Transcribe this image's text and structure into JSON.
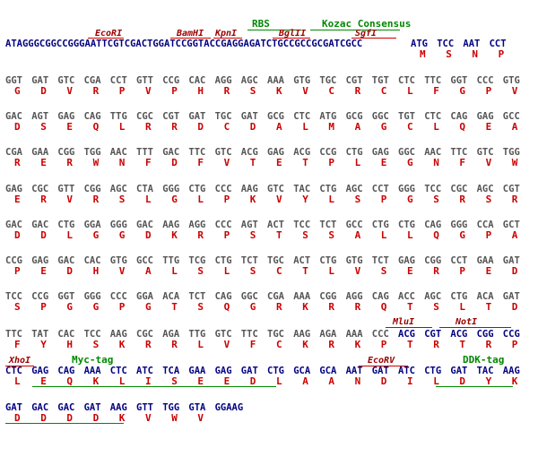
{
  "header": {
    "sequence": "ATAGGGCGGCCGGGAATTCGTCGACTGGATCCGGTACCGAGGAGATCTGCCGCCGCGATCGCC",
    "sites": [
      "EcoRI",
      "BamHI",
      "KpnI",
      "BglII",
      "SgfI"
    ],
    "features": [
      "RBS",
      "Kozac Consensus"
    ]
  },
  "rows": [
    [
      [
        "ATG",
        "M"
      ],
      [
        "TCC",
        "S"
      ],
      [
        "AAT",
        "N"
      ],
      [
        "CCT",
        "P"
      ]
    ],
    [
      [
        "GGT",
        "G"
      ],
      [
        "GAT",
        "D"
      ],
      [
        "GTC",
        "V"
      ],
      [
        "CGA",
        "R"
      ],
      [
        "CCT",
        "P"
      ],
      [
        "GTT",
        "V"
      ],
      [
        "CCG",
        "P"
      ],
      [
        "CAC",
        "H"
      ],
      [
        "AGG",
        "R"
      ],
      [
        "AGC",
        "S"
      ],
      [
        "AAA",
        "K"
      ],
      [
        "GTG",
        "V"
      ],
      [
        "TGC",
        "C"
      ],
      [
        "CGT",
        "R"
      ],
      [
        "TGT",
        "C"
      ],
      [
        "CTC",
        "L"
      ],
      [
        "TTC",
        "F"
      ],
      [
        "GGT",
        "G"
      ],
      [
        "CCC",
        "P"
      ],
      [
        "GTG",
        "V"
      ]
    ],
    [
      [
        "GAC",
        "D"
      ],
      [
        "AGT",
        "S"
      ],
      [
        "GAG",
        "E"
      ],
      [
        "CAG",
        "Q"
      ],
      [
        "TTG",
        "L"
      ],
      [
        "CGC",
        "R"
      ],
      [
        "CGT",
        "R"
      ],
      [
        "GAT",
        "D"
      ],
      [
        "TGC",
        "C"
      ],
      [
        "GAT",
        "D"
      ],
      [
        "GCG",
        "A"
      ],
      [
        "CTC",
        "L"
      ],
      [
        "ATG",
        "M"
      ],
      [
        "GCG",
        "A"
      ],
      [
        "GGC",
        "G"
      ],
      [
        "TGT",
        "C"
      ],
      [
        "CTC",
        "L"
      ],
      [
        "CAG",
        "Q"
      ],
      [
        "GAG",
        "E"
      ],
      [
        "GCC",
        "A"
      ]
    ],
    [
      [
        "CGA",
        "R"
      ],
      [
        "GAA",
        "E"
      ],
      [
        "CGG",
        "R"
      ],
      [
        "TGG",
        "W"
      ],
      [
        "AAC",
        "N"
      ],
      [
        "TTT",
        "F"
      ],
      [
        "GAC",
        "D"
      ],
      [
        "TTC",
        "F"
      ],
      [
        "GTC",
        "V"
      ],
      [
        "ACG",
        "T"
      ],
      [
        "GAG",
        "E"
      ],
      [
        "ACG",
        "T"
      ],
      [
        "CCG",
        "P"
      ],
      [
        "CTG",
        "L"
      ],
      [
        "GAG",
        "E"
      ],
      [
        "GGC",
        "G"
      ],
      [
        "AAC",
        "N"
      ],
      [
        "TTC",
        "F"
      ],
      [
        "GTC",
        "V"
      ],
      [
        "TGG",
        "W"
      ]
    ],
    [
      [
        "GAG",
        "E"
      ],
      [
        "CGC",
        "R"
      ],
      [
        "GTT",
        "V"
      ],
      [
        "CGG",
        "R"
      ],
      [
        "AGC",
        "S"
      ],
      [
        "CTA",
        "L"
      ],
      [
        "GGG",
        "G"
      ],
      [
        "CTG",
        "L"
      ],
      [
        "CCC",
        "P"
      ],
      [
        "AAG",
        "K"
      ],
      [
        "GTC",
        "V"
      ],
      [
        "TAC",
        "Y"
      ],
      [
        "CTG",
        "L"
      ],
      [
        "AGC",
        "S"
      ],
      [
        "CCT",
        "P"
      ],
      [
        "GGG",
        "G"
      ],
      [
        "TCC",
        "S"
      ],
      [
        "CGC",
        "R"
      ],
      [
        "AGC",
        "S"
      ],
      [
        "CGT",
        "R"
      ]
    ],
    [
      [
        "GAC",
        "D"
      ],
      [
        "GAC",
        "D"
      ],
      [
        "CTG",
        "L"
      ],
      [
        "GGA",
        "G"
      ],
      [
        "GGG",
        "G"
      ],
      [
        "GAC",
        "D"
      ],
      [
        "AAG",
        "K"
      ],
      [
        "AGG",
        "R"
      ],
      [
        "CCC",
        "P"
      ],
      [
        "AGT",
        "S"
      ],
      [
        "ACT",
        "T"
      ],
      [
        "TCC",
        "S"
      ],
      [
        "TCT",
        "S"
      ],
      [
        "GCC",
        "A"
      ],
      [
        "CTG",
        "L"
      ],
      [
        "CTG",
        "L"
      ],
      [
        "CAG",
        "Q"
      ],
      [
        "GGG",
        "G"
      ],
      [
        "CCA",
        "P"
      ],
      [
        "GCT",
        "A"
      ]
    ],
    [
      [
        "CCG",
        "P"
      ],
      [
        "GAG",
        "E"
      ],
      [
        "GAC",
        "D"
      ],
      [
        "CAC",
        "H"
      ],
      [
        "GTG",
        "V"
      ],
      [
        "GCC",
        "A"
      ],
      [
        "TTG",
        "L"
      ],
      [
        "TCG",
        "S"
      ],
      [
        "CTG",
        "L"
      ],
      [
        "TCT",
        "S"
      ],
      [
        "TGC",
        "C"
      ],
      [
        "ACT",
        "T"
      ],
      [
        "CTG",
        "L"
      ],
      [
        "GTG",
        "V"
      ],
      [
        "TCT",
        "S"
      ],
      [
        "GAG",
        "E"
      ],
      [
        "CGG",
        "R"
      ],
      [
        "CCT",
        "P"
      ],
      [
        "GAA",
        "E"
      ],
      [
        "GAT",
        "D"
      ]
    ],
    [
      [
        "TCC",
        "S"
      ],
      [
        "CCG",
        "P"
      ],
      [
        "GGT",
        "G"
      ],
      [
        "GGG",
        "G"
      ],
      [
        "CCC",
        "P"
      ],
      [
        "GGA",
        "G"
      ],
      [
        "ACA",
        "T"
      ],
      [
        "TCT",
        "S"
      ],
      [
        "CAG",
        "Q"
      ],
      [
        "GGC",
        "G"
      ],
      [
        "CGA",
        "R"
      ],
      [
        "AAA",
        "K"
      ],
      [
        "CGG",
        "R"
      ],
      [
        "AGG",
        "R"
      ],
      [
        "CAG",
        "Q"
      ],
      [
        "ACC",
        "T"
      ],
      [
        "AGC",
        "S"
      ],
      [
        "CTG",
        "L"
      ],
      [
        "ACA",
        "T"
      ],
      [
        "GAT",
        "D"
      ]
    ],
    [
      [
        "TTC",
        "F"
      ],
      [
        "TAT",
        "Y"
      ],
      [
        "CAC",
        "H"
      ],
      [
        "TCC",
        "S"
      ],
      [
        "AAG",
        "K"
      ],
      [
        "CGC",
        "R"
      ],
      [
        "AGA",
        "R"
      ],
      [
        "TTG",
        "L"
      ],
      [
        "GTC",
        "V"
      ],
      [
        "TTC",
        "F"
      ],
      [
        "TGC",
        "C"
      ],
      [
        "AAG",
        "K"
      ],
      [
        "AGA",
        "R"
      ],
      [
        "AAA",
        "K"
      ],
      [
        "CCC",
        "P"
      ],
      [
        "ACG",
        "T"
      ],
      [
        "CGT",
        "R"
      ],
      [
        "ACG",
        "T"
      ],
      [
        "CGG",
        "R"
      ],
      [
        "CCG",
        "P"
      ]
    ],
    [
      [
        "CTC",
        "L"
      ],
      [
        "GAG",
        "E"
      ],
      [
        "CAG",
        "Q"
      ],
      [
        "AAA",
        "K"
      ],
      [
        "CTC",
        "L"
      ],
      [
        "ATC",
        "I"
      ],
      [
        "TCA",
        "S"
      ],
      [
        "GAA",
        "E"
      ],
      [
        "GAG",
        "E"
      ],
      [
        "GAT",
        "D"
      ],
      [
        "CTG",
        "L"
      ],
      [
        "GCA",
        "A"
      ],
      [
        "GCA",
        "A"
      ],
      [
        "AAT",
        "N"
      ],
      [
        "GAT",
        "D"
      ],
      [
        "ATC",
        "I"
      ],
      [
        "CTG",
        "L"
      ],
      [
        "GAT",
        "D"
      ],
      [
        "TAC",
        "Y"
      ],
      [
        "AAG",
        "K"
      ]
    ],
    [
      [
        "GAT",
        "D"
      ],
      [
        "GAC",
        "D"
      ],
      [
        "GAC",
        "D"
      ],
      [
        "GAT",
        "D"
      ],
      [
        "AAG",
        "K"
      ],
      [
        "GTT",
        "V"
      ],
      [
        "TGG",
        "W"
      ],
      [
        "GTA",
        "V"
      ],
      [
        "GGAAG",
        ""
      ]
    ]
  ],
  "annotations": {
    "mlui": "MluI",
    "noti": "NotI",
    "xhoi": "XhoI",
    "myc": "Myc-tag",
    "ecorv": "EcoRV",
    "ddk": "DDK-tag"
  },
  "colors": {
    "dark_nt": "#555555",
    "blue_nt": "#000080",
    "aa": "#cc0000",
    "site": "#990000",
    "feature": "#008800"
  }
}
